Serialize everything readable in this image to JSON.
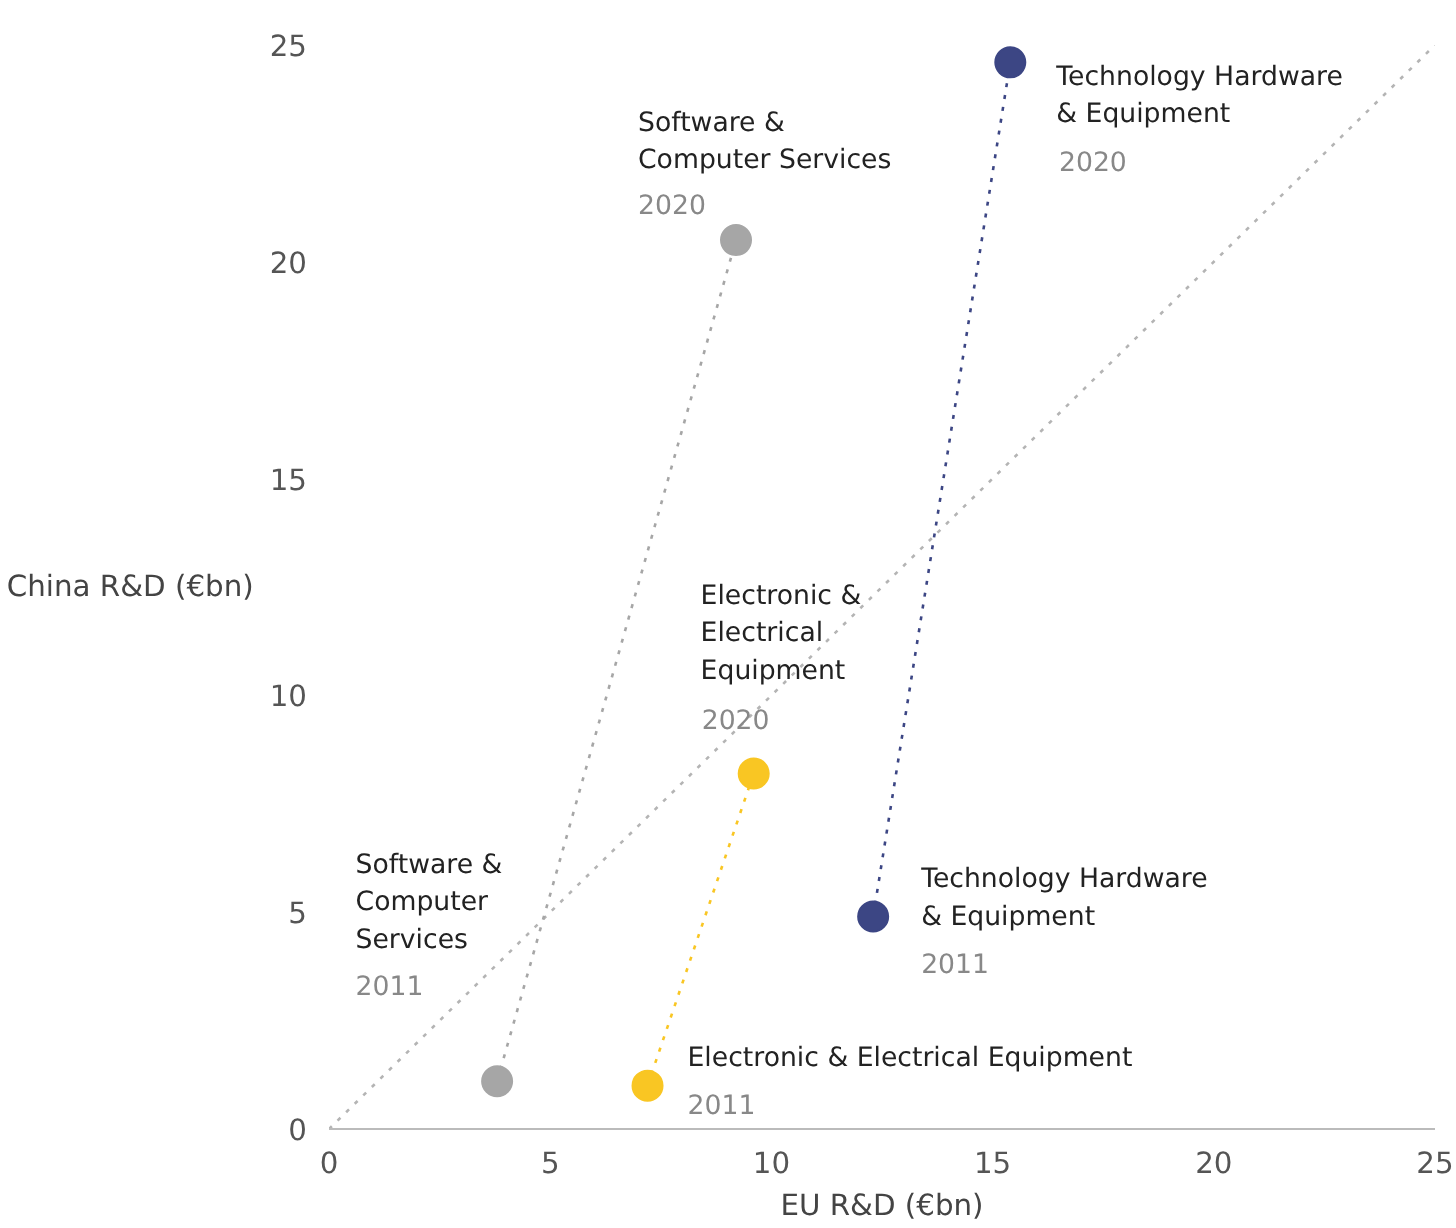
{
  "chart_data": {
    "type": "line",
    "xlabel": "EU R&D (€bn)",
    "ylabel": "China R&D (€bn)",
    "xlim": [
      0,
      25
    ],
    "ylim": [
      0,
      25
    ],
    "xticks": [
      0,
      5,
      10,
      15,
      20,
      25
    ],
    "yticks": [
      0,
      5,
      10,
      15,
      20,
      25
    ],
    "grid": false,
    "marker": "circle",
    "line_style": "dotted",
    "series": [
      {
        "type": "line",
        "marker": "none",
        "color": "#b4b4b4",
        "x": [
          0,
          25
        ],
        "values": [
          0,
          25
        ]
      },
      {
        "color": "#a6a6a6",
        "x": [
          3.8,
          9.2
        ],
        "values": [
          1.1,
          20.5
        ]
      },
      {
        "color": "#f9c623",
        "x": [
          7.2,
          9.6
        ],
        "values": [
          1.0,
          8.2
        ]
      },
      {
        "color": "#3c4684",
        "x": [
          12.3,
          15.4
        ],
        "values": [
          4.9,
          24.6
        ]
      }
    ],
    "annotations": [
      "Software &\nComputer\nServices",
      "2011",
      {
        "text": "Software &\nComputer Services",
        "x": 9.2,
        "y": 20.5
      },
      {
        "text": "2020",
        "x": 9.2,
        "y": 20.5
      },
      {
        "text": "Electronic & Electrical Equipment",
        "x": 7.2,
        "y": 1.0
      },
      {
        "text": "2011",
        "x": 7.2,
        "y": 1.0
      },
      "Electronic &\nElectrical\nEquipment",
      {
        "text": "2020",
        "x": 9.6,
        "y": 8.2
      },
      {
        "text": "Technology Hardware\n& Equipment",
        "x": 12.3,
        "y": 4.9
      },
      {
        "text": "2011",
        "x": 12.3,
        "y": 4.9
      },
      {
        "text": "Technology Hardware\n& Equipment",
        "x": 15.4,
        "y": 24.6
      },
      "2020"
    ]
  }
}
